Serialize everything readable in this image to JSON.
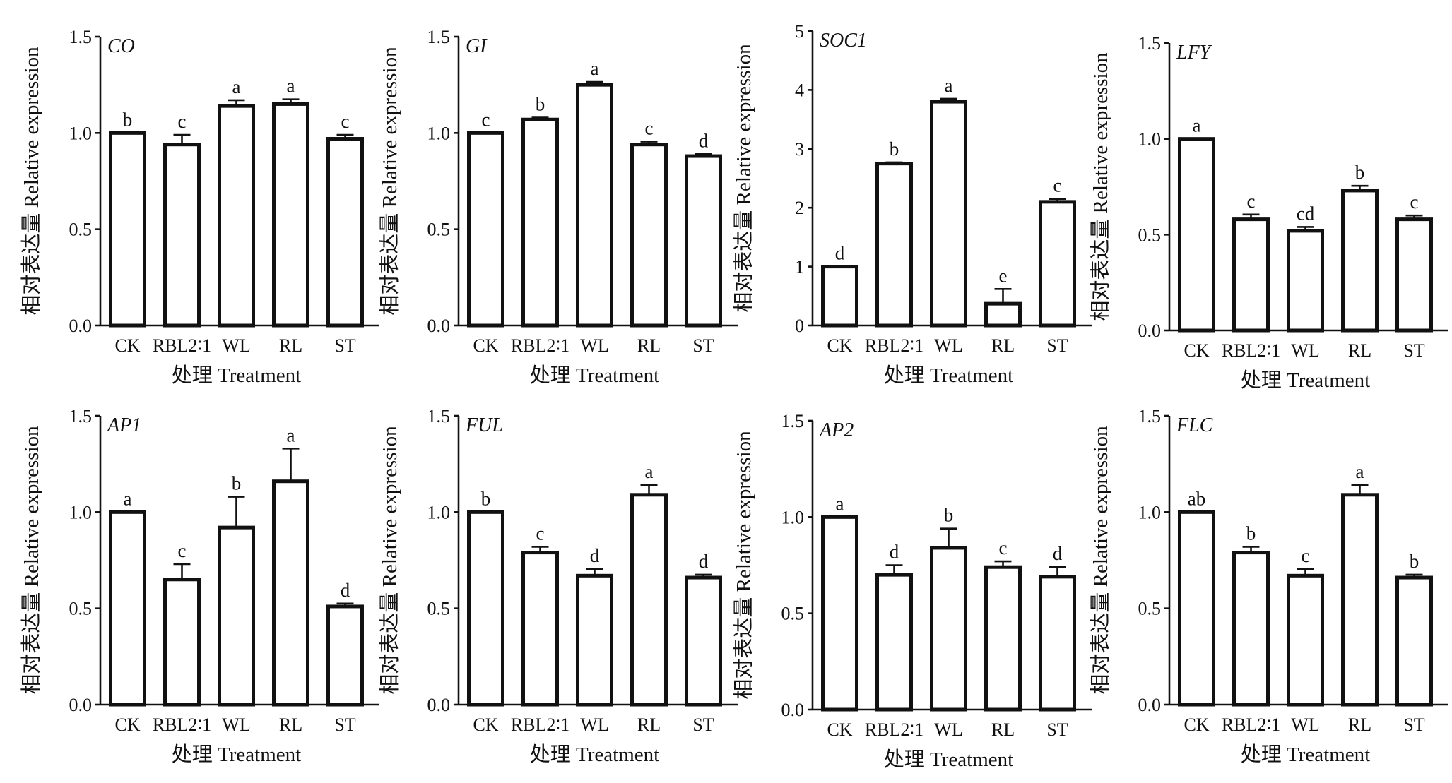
{
  "figure": {
    "xlabel": "处理 Treatment",
    "ylabel": "相对表达量 Relative expression"
  },
  "chart_data": [
    {
      "type": "bar",
      "title": "CO",
      "categories": [
        "CK",
        "RBL2∶1",
        "WL",
        "RL",
        "ST"
      ],
      "values": [
        1.0,
        0.94,
        1.14,
        1.15,
        0.97
      ],
      "errors": [
        0.0,
        0.05,
        0.03,
        0.025,
        0.02
      ],
      "letters": [
        "b",
        "c",
        "a",
        "a",
        "c"
      ],
      "ylim": [
        0,
        1.5
      ],
      "yticks": [
        "0.0",
        "0.5",
        "1.0",
        "1.5"
      ],
      "xlabel": "处理 Treatment",
      "ylabel": "相对表达量 Relative expression",
      "grid": false
    },
    {
      "type": "bar",
      "title": "GI",
      "categories": [
        "CK",
        "RBL2∶1",
        "WL",
        "RL",
        "ST"
      ],
      "values": [
        1.0,
        1.07,
        1.25,
        0.94,
        0.88
      ],
      "errors": [
        0.0,
        0.01,
        0.015,
        0.015,
        0.01
      ],
      "letters": [
        "c",
        "b",
        "a",
        "c",
        "d"
      ],
      "ylim": [
        0,
        1.5
      ],
      "yticks": [
        "0.0",
        "0.5",
        "1.0",
        "1.5"
      ],
      "xlabel": "处理 Treatment",
      "ylabel": "相对表达量 Relative expression",
      "grid": false
    },
    {
      "type": "bar",
      "title": "SOC1",
      "categories": [
        "CK",
        "RBL2∶1",
        "WL",
        "RL",
        "ST"
      ],
      "values": [
        1.0,
        2.75,
        3.8,
        0.37,
        2.1
      ],
      "errors": [
        0.0,
        0.02,
        0.05,
        0.25,
        0.05
      ],
      "letters": [
        "d",
        "b",
        "a",
        "e",
        "c"
      ],
      "ylim": [
        0,
        5
      ],
      "yticks": [
        "0",
        "1",
        "2",
        "3",
        "4",
        "5"
      ],
      "xlabel": "处理 Treatment",
      "ylabel": "相对表达量 Relative expression",
      "grid": false
    },
    {
      "type": "bar",
      "title": "LFY",
      "categories": [
        "CK",
        "RBL2∶1",
        "WL",
        "RL",
        "ST"
      ],
      "values": [
        1.0,
        0.58,
        0.52,
        0.73,
        0.58
      ],
      "errors": [
        0.0,
        0.025,
        0.02,
        0.025,
        0.02
      ],
      "letters": [
        "a",
        "c",
        "cd",
        "b",
        "c"
      ],
      "ylim": [
        0,
        1.5
      ],
      "yticks": [
        "0.0",
        "0.5",
        "1.0",
        "1.5"
      ],
      "xlabel": "处理 Treatment",
      "ylabel": "相对表达量 Relative expression",
      "grid": false
    },
    {
      "type": "bar",
      "title": "AP1",
      "categories": [
        "CK",
        "RBL2∶1",
        "WL",
        "RL",
        "ST"
      ],
      "values": [
        1.0,
        0.65,
        0.92,
        1.16,
        0.51
      ],
      "errors": [
        0.0,
        0.08,
        0.16,
        0.17,
        0.015
      ],
      "letters": [
        "a",
        "c",
        "b",
        "a",
        "d"
      ],
      "ylim": [
        0,
        1.5
      ],
      "yticks": [
        "0.0",
        "0.5",
        "1.0",
        "1.5"
      ],
      "xlabel": "处理 Treatment",
      "ylabel": "相对表达量 Relative expression",
      "grid": false
    },
    {
      "type": "bar",
      "title": "FUL",
      "categories": [
        "CK",
        "RBL2∶1",
        "WL",
        "RL",
        "ST"
      ],
      "values": [
        1.0,
        0.79,
        0.67,
        1.09,
        0.66
      ],
      "errors": [
        0.0,
        0.03,
        0.035,
        0.05,
        0.015
      ],
      "letters": [
        "b",
        "c",
        "d",
        "a",
        "d"
      ],
      "ylim": [
        0,
        1.5
      ],
      "yticks": [
        "0.0",
        "0.5",
        "1.0",
        "1.5"
      ],
      "xlabel": "处理 Treatment",
      "ylabel": "相对表达量 Relative expression",
      "grid": false
    },
    {
      "type": "bar",
      "title": "AP2",
      "categories": [
        "CK",
        "RBL2∶1",
        "WL",
        "RL",
        "ST"
      ],
      "values": [
        1.0,
        0.7,
        0.84,
        0.74,
        0.69
      ],
      "errors": [
        0.0,
        0.05,
        0.1,
        0.03,
        0.05
      ],
      "letters": [
        "a",
        "d",
        "b",
        "c",
        "d"
      ],
      "ylim": [
        0,
        1.5
      ],
      "yticks": [
        "0.0",
        "0.5",
        "1.0",
        "1.5"
      ],
      "xlabel": "处理 Treatment",
      "ylabel": "相对表达量 Relative expression",
      "grid": false
    },
    {
      "type": "bar",
      "title": "FLC",
      "categories": [
        "CK",
        "RBL2∶1",
        "WL",
        "RL",
        "ST"
      ],
      "values": [
        1.0,
        0.79,
        0.67,
        1.09,
        0.66
      ],
      "errors": [
        0.0,
        0.03,
        0.035,
        0.05,
        0.015
      ],
      "letters": [
        "ab",
        "b",
        "c",
        "a",
        "b"
      ],
      "ylim": [
        0,
        1.5
      ],
      "yticks": [
        "0.0",
        "0.5",
        "1.0",
        "1.5"
      ],
      "xlabel": "处理 Treatment",
      "ylabel": "相对表达量 Relative expression",
      "grid": false
    }
  ]
}
